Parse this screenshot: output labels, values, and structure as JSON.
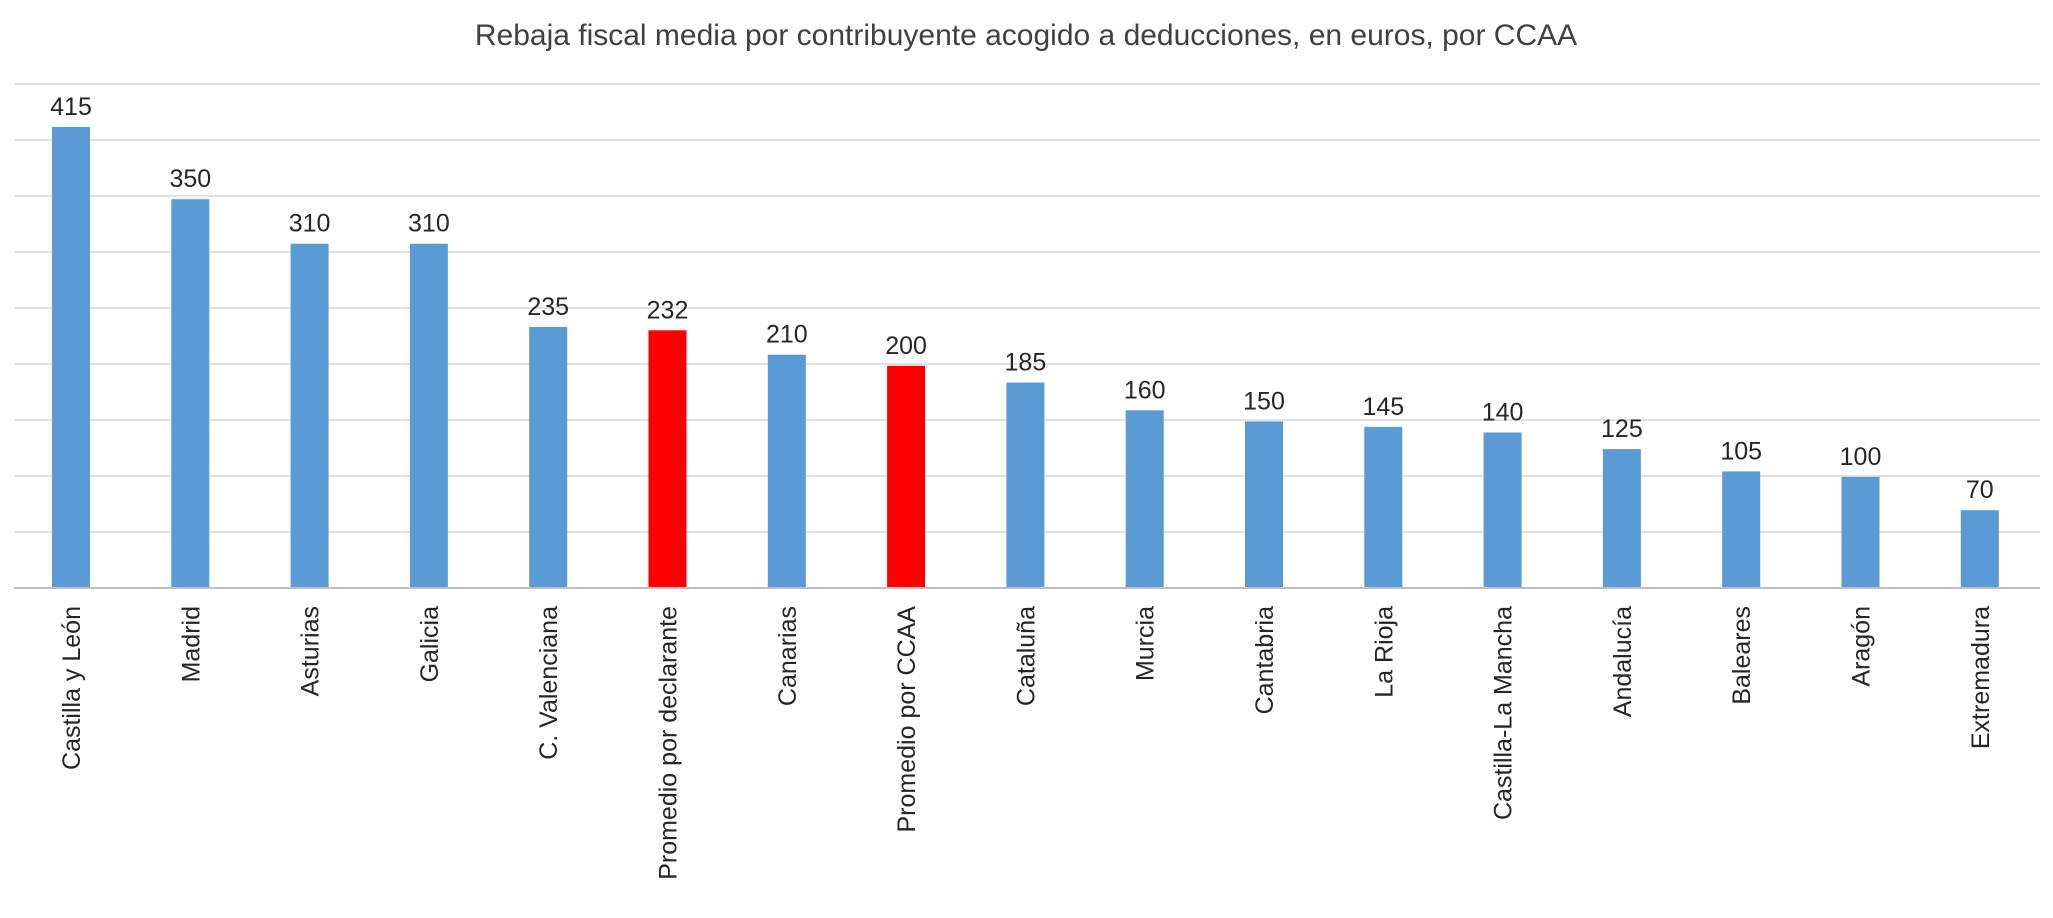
{
  "chart_data": {
    "type": "bar",
    "title": "Rebaja fiscal media por contribuyente acogido a deducciones, en euros, por CCAA",
    "xlabel": "",
    "ylabel": "",
    "ylim": [
      0,
      450
    ],
    "grid": true,
    "legend": "none",
    "categories": [
      "Castilla y León",
      "Madrid",
      "Asturias",
      "Galicia",
      "C. Valenciana",
      "Promedio por declarante",
      "Canarias",
      "Promedio por CCAA",
      "Cataluña",
      "Murcia",
      "Cantabria",
      "La Rioja",
      "Castilla-La Mancha",
      "Andalucía",
      "Baleares",
      "Aragón",
      "Extremadura"
    ],
    "values": [
      415,
      350,
      310,
      310,
      235,
      232,
      210,
      200,
      185,
      160,
      150,
      145,
      140,
      125,
      105,
      100,
      70
    ],
    "value_labels": [
      "415",
      "350",
      "310",
      "310",
      "235",
      "232",
      "210",
      "200",
      "185",
      "160",
      "150",
      "145",
      "140",
      "125",
      "105",
      "100",
      "70"
    ],
    "highlighted": [
      false,
      false,
      false,
      false,
      false,
      true,
      false,
      true,
      false,
      false,
      false,
      false,
      false,
      false,
      false,
      false,
      false
    ],
    "colors": {
      "default_bar": "#5b9bd5",
      "highlight_bar": "#ff0000",
      "gridline": "#d9d9d9",
      "axis": "#bfbfbf",
      "title": "#404040",
      "labels": "#262626"
    }
  }
}
